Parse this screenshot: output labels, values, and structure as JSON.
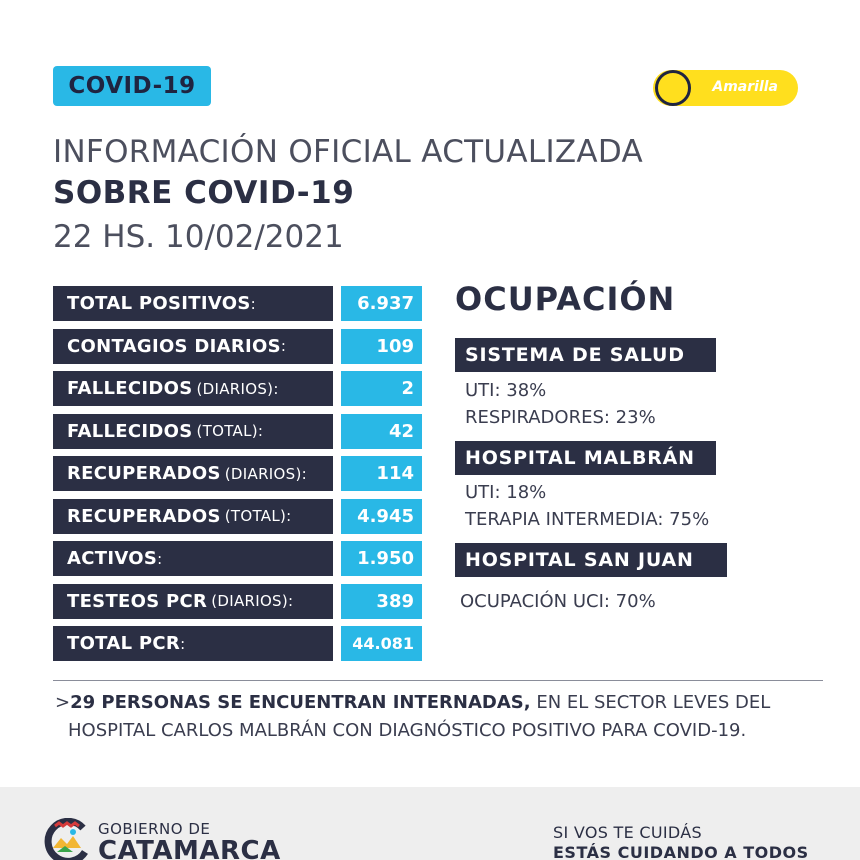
{
  "badge": "COVID-19",
  "alert": {
    "label": "Amarilla",
    "color": "#ffdf1e"
  },
  "heading": {
    "line1": "INFORMACIÓN OFICIAL ACTUALIZADA",
    "line2": "SOBRE COVID-19",
    "line3": "22 HS. 10/02/2021"
  },
  "stats": [
    {
      "label": "TOTAL POSITIVOS",
      "sub": ":",
      "value": "6.937"
    },
    {
      "label": "CONTAGIOS DIARIOS",
      "sub": ":",
      "value": "109"
    },
    {
      "label": "FALLECIDOS",
      "sub": "(DIARIOS):",
      "value": "2"
    },
    {
      "label": "FALLECIDOS",
      "sub": "(TOTAL):",
      "value": "42"
    },
    {
      "label": "RECUPERADOS",
      "sub": "(DIARIOS):",
      "value": "114"
    },
    {
      "label": "RECUPERADOS",
      "sub": "(TOTAL):",
      "value": "4.945"
    },
    {
      "label": "ACTIVOS",
      "sub": ":",
      "value": "1.950"
    },
    {
      "label": "TESTEOS PCR",
      "sub": "(DIARIOS):",
      "value": "389"
    },
    {
      "label": "TOTAL PCR",
      "sub": ":",
      "value": "44.081"
    }
  ],
  "ocupacion": {
    "title": "OCUPACIÓN",
    "sections": [
      {
        "title": "SISTEMA DE SALUD",
        "lines": [
          "UTI: 38%",
          "RESPIRADORES: 23%"
        ]
      },
      {
        "title": "HOSPITAL MALBRÁN",
        "lines": [
          "UTI: 18%",
          "TERAPIA INTERMEDIA: 75%"
        ]
      },
      {
        "title": "HOSPITAL SAN JUAN",
        "lines": [
          "OCUPACIÓN UCI: 70%"
        ]
      }
    ]
  },
  "note": {
    "marker": ">",
    "bold": "29 PERSONAS SE ENCUENTRAN INTERNADAS,",
    "rest": " EN EL SECTOR LEVES DEL",
    "line2": "HOSPITAL CARLOS MALBRÁN CON DIAGNÓSTICO POSITIVO PARA COVID-19."
  },
  "footer": {
    "gob_top": "GOBIERNO DE",
    "gob_bottom": "CATAMARCA",
    "slogan1": "SI VOS TE CUIDÁS",
    "slogan2": "ESTÁS CUIDANDO A TODOS"
  }
}
